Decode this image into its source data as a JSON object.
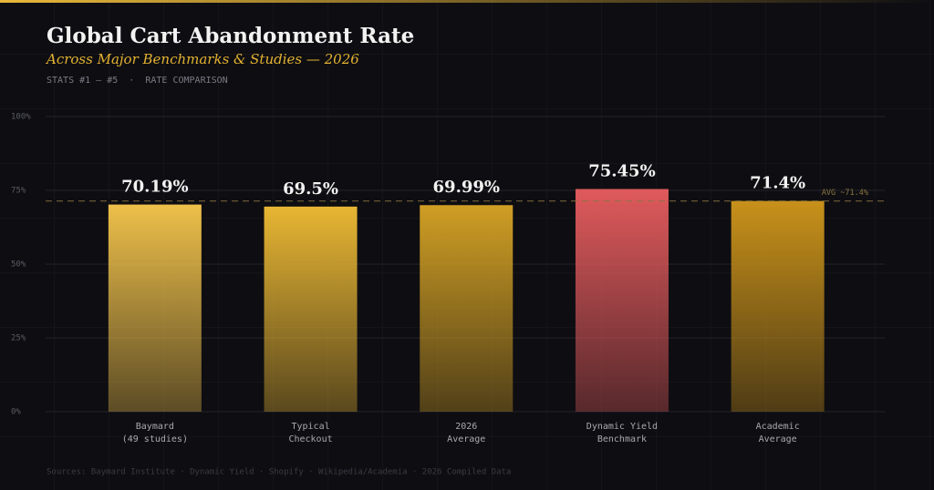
{
  "chart_data": {
    "type": "bar",
    "title": "Global Cart Abandonment Rate",
    "subtitle": "Across Major Benchmarks & Studies — 2026",
    "kicker": "STATS #1 — #5  ·  RATE COMPARISON",
    "source": "Sources: Baymard Institute · Dynamic Yield · Shopify · Wikipedia/Academia · 2026 Compiled Data",
    "categories": [
      [
        "Baymard",
        "(49 studies)"
      ],
      [
        "Typical",
        "Checkout"
      ],
      [
        "2026",
        "Average"
      ],
      [
        "Dynamic Yield",
        "Benchmark"
      ],
      [
        "Academic",
        "Average"
      ]
    ],
    "values": [
      70.19,
      69.5,
      69.99,
      75.45,
      71.4
    ],
    "value_labels": [
      "70.19%",
      "69.5%",
      "69.99%",
      "75.45%",
      "71.4%"
    ],
    "colors": [
      "#eec04a",
      "#e8b633",
      "#cf9e24",
      "#e05a5c",
      "#c8911a"
    ],
    "ylim": [
      0,
      100
    ],
    "yticks": [
      {
        "value": 0,
        "label": "0%"
      },
      {
        "value": 25,
        "label": "25%"
      },
      {
        "value": 50,
        "label": "50%"
      },
      {
        "value": 75,
        "label": "75%"
      },
      {
        "value": 100,
        "label": "100%"
      }
    ],
    "grid": true,
    "average_line": {
      "value": 71.4,
      "label": "AVG ~71.4%"
    }
  }
}
